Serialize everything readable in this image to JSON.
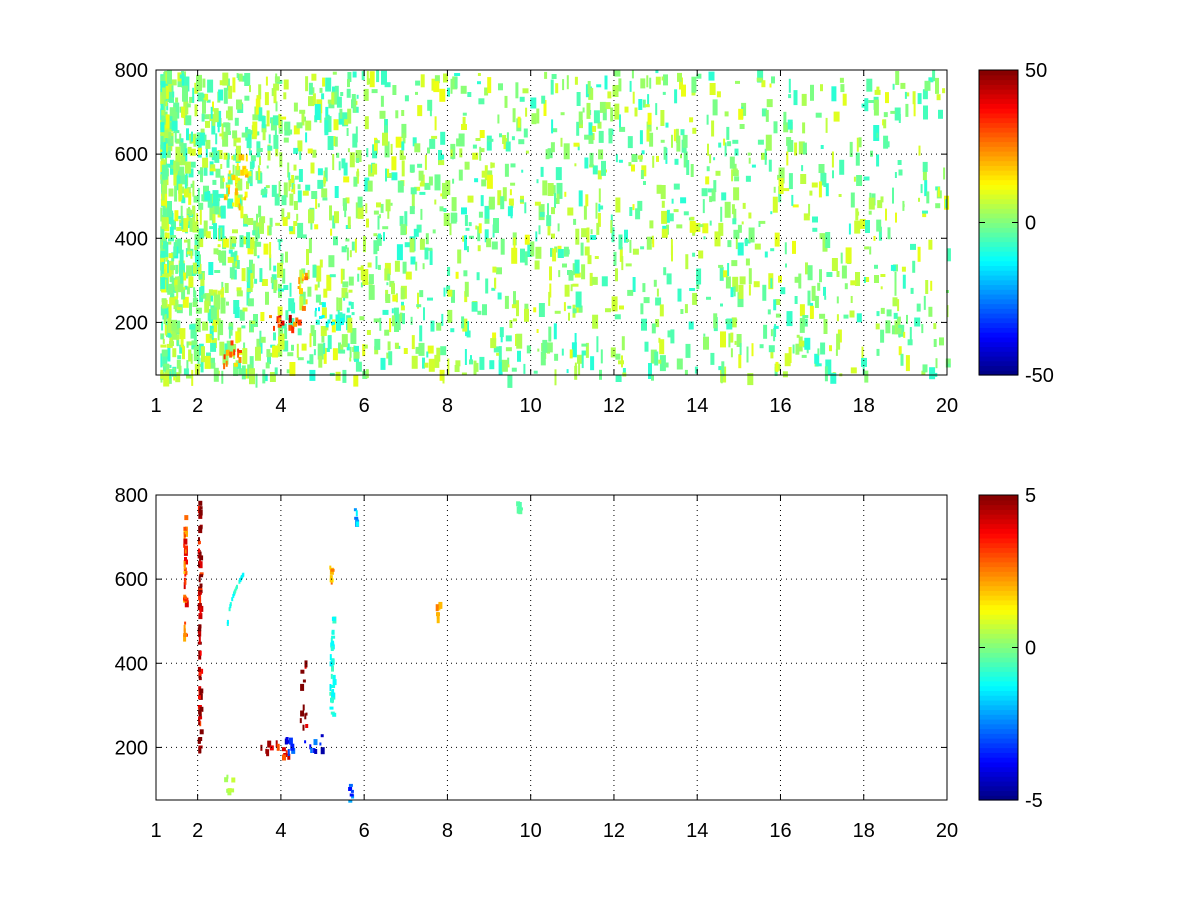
{
  "chart_data": [
    {
      "type": "heatmap",
      "xlim": [
        1,
        20
      ],
      "ylim": [
        75,
        800
      ],
      "x_ticks": [
        1,
        2,
        4,
        6,
        8,
        10,
        12,
        14,
        16,
        18,
        20
      ],
      "x_tick_labels": [
        "1",
        "2",
        "4",
        "6",
        "8",
        "10",
        "12",
        "14",
        "16",
        "18",
        "20"
      ],
      "y_ticks": [
        200,
        400,
        600,
        800
      ],
      "y_tick_labels": [
        "200",
        "400",
        "600",
        "800"
      ],
      "grid": true,
      "colormap": "jet",
      "clim": [
        -50,
        50
      ],
      "colorbar_ticks": [
        -50,
        0,
        50
      ],
      "colorbar_tick_labels": [
        "-50",
        "0",
        "50"
      ],
      "features": [
        {
          "x": [
            1.1,
            20
          ],
          "y": [
            75,
            800
          ],
          "value": 5,
          "kind": "scattered sparse cells"
        },
        {
          "x": [
            2.6,
            3.1
          ],
          "y": [
            100,
            160
          ],
          "value": 25,
          "kind": "cluster"
        },
        {
          "x": [
            3.6,
            4.7
          ],
          "y": [
            190,
            220
          ],
          "value": 35,
          "kind": "cluster"
        },
        {
          "x": [
            4.4,
            4.6
          ],
          "y": [
            230,
            330
          ],
          "value": 20,
          "kind": "cluster"
        },
        {
          "x": [
            2.6,
            3.2
          ],
          "y": [
            480,
            600
          ],
          "value": 15,
          "kind": "cluster"
        },
        {
          "x": [
            4.8,
            5.7
          ],
          "y": [
            200,
            250
          ],
          "value": -10,
          "kind": "cluster"
        }
      ]
    },
    {
      "type": "heatmap",
      "xlim": [
        1,
        20
      ],
      "ylim": [
        75,
        800
      ],
      "x_ticks": [
        1,
        2,
        4,
        6,
        8,
        10,
        12,
        14,
        16,
        18,
        20
      ],
      "x_tick_labels": [
        "1",
        "2",
        "4",
        "6",
        "8",
        "10",
        "12",
        "14",
        "16",
        "18",
        "20"
      ],
      "y_ticks": [
        200,
        400,
        600,
        800
      ],
      "y_tick_labels": [
        "200",
        "400",
        "600",
        "800"
      ],
      "grid": true,
      "colormap": "jet",
      "clim": [
        -5,
        5
      ],
      "colorbar_ticks": [
        -5,
        0,
        5
      ],
      "colorbar_tick_labels": [
        "-5",
        "0",
        "5"
      ],
      "features": [
        {
          "x": [
            1.65,
            1.7
          ],
          "y": [
            460,
            760
          ],
          "value": 3,
          "kind": "line"
        },
        {
          "x": [
            2.0,
            2.05
          ],
          "y": [
            200,
            800
          ],
          "value": 5,
          "kind": "line"
        },
        {
          "x": [
            2.7,
            3.1
          ],
          "y": [
            490,
            620
          ],
          "value": -1,
          "kind": "arc"
        },
        {
          "x": [
            2.6,
            2.9
          ],
          "y": [
            100,
            150
          ],
          "value": 0.5,
          "kind": "cluster"
        },
        {
          "x": [
            3.5,
            4.2
          ],
          "y": [
            180,
            220
          ],
          "value": 3.5,
          "kind": "cluster"
        },
        {
          "x": [
            4.0,
            4.4
          ],
          "y": [
            190,
            230
          ],
          "value": -3.5,
          "kind": "cluster"
        },
        {
          "x": [
            4.45,
            4.6
          ],
          "y": [
            230,
            410
          ],
          "value": 5,
          "kind": "cluster"
        },
        {
          "x": [
            4.5,
            5.0
          ],
          "y": [
            195,
            235
          ],
          "value": -4,
          "kind": "cluster"
        },
        {
          "x": [
            5.15,
            5.25
          ],
          "y": [
            280,
            520
          ],
          "value": -1,
          "kind": "line"
        },
        {
          "x": [
            5.15,
            5.25
          ],
          "y": [
            600,
            650
          ],
          "value": 2,
          "kind": "cluster"
        },
        {
          "x": [
            5.6,
            5.7
          ],
          "y": [
            75,
            130
          ],
          "value": -3,
          "kind": "cluster"
        },
        {
          "x": [
            5.75,
            5.85
          ],
          "y": [
            730,
            770
          ],
          "value": -2,
          "kind": "cluster"
        },
        {
          "x": [
            7.7,
            7.8
          ],
          "y": [
            510,
            555
          ],
          "value": 2,
          "kind": "cluster"
        },
        {
          "x": [
            9.65,
            9.75
          ],
          "y": [
            765,
            785
          ],
          "value": -0.5,
          "kind": "cluster"
        }
      ]
    }
  ]
}
